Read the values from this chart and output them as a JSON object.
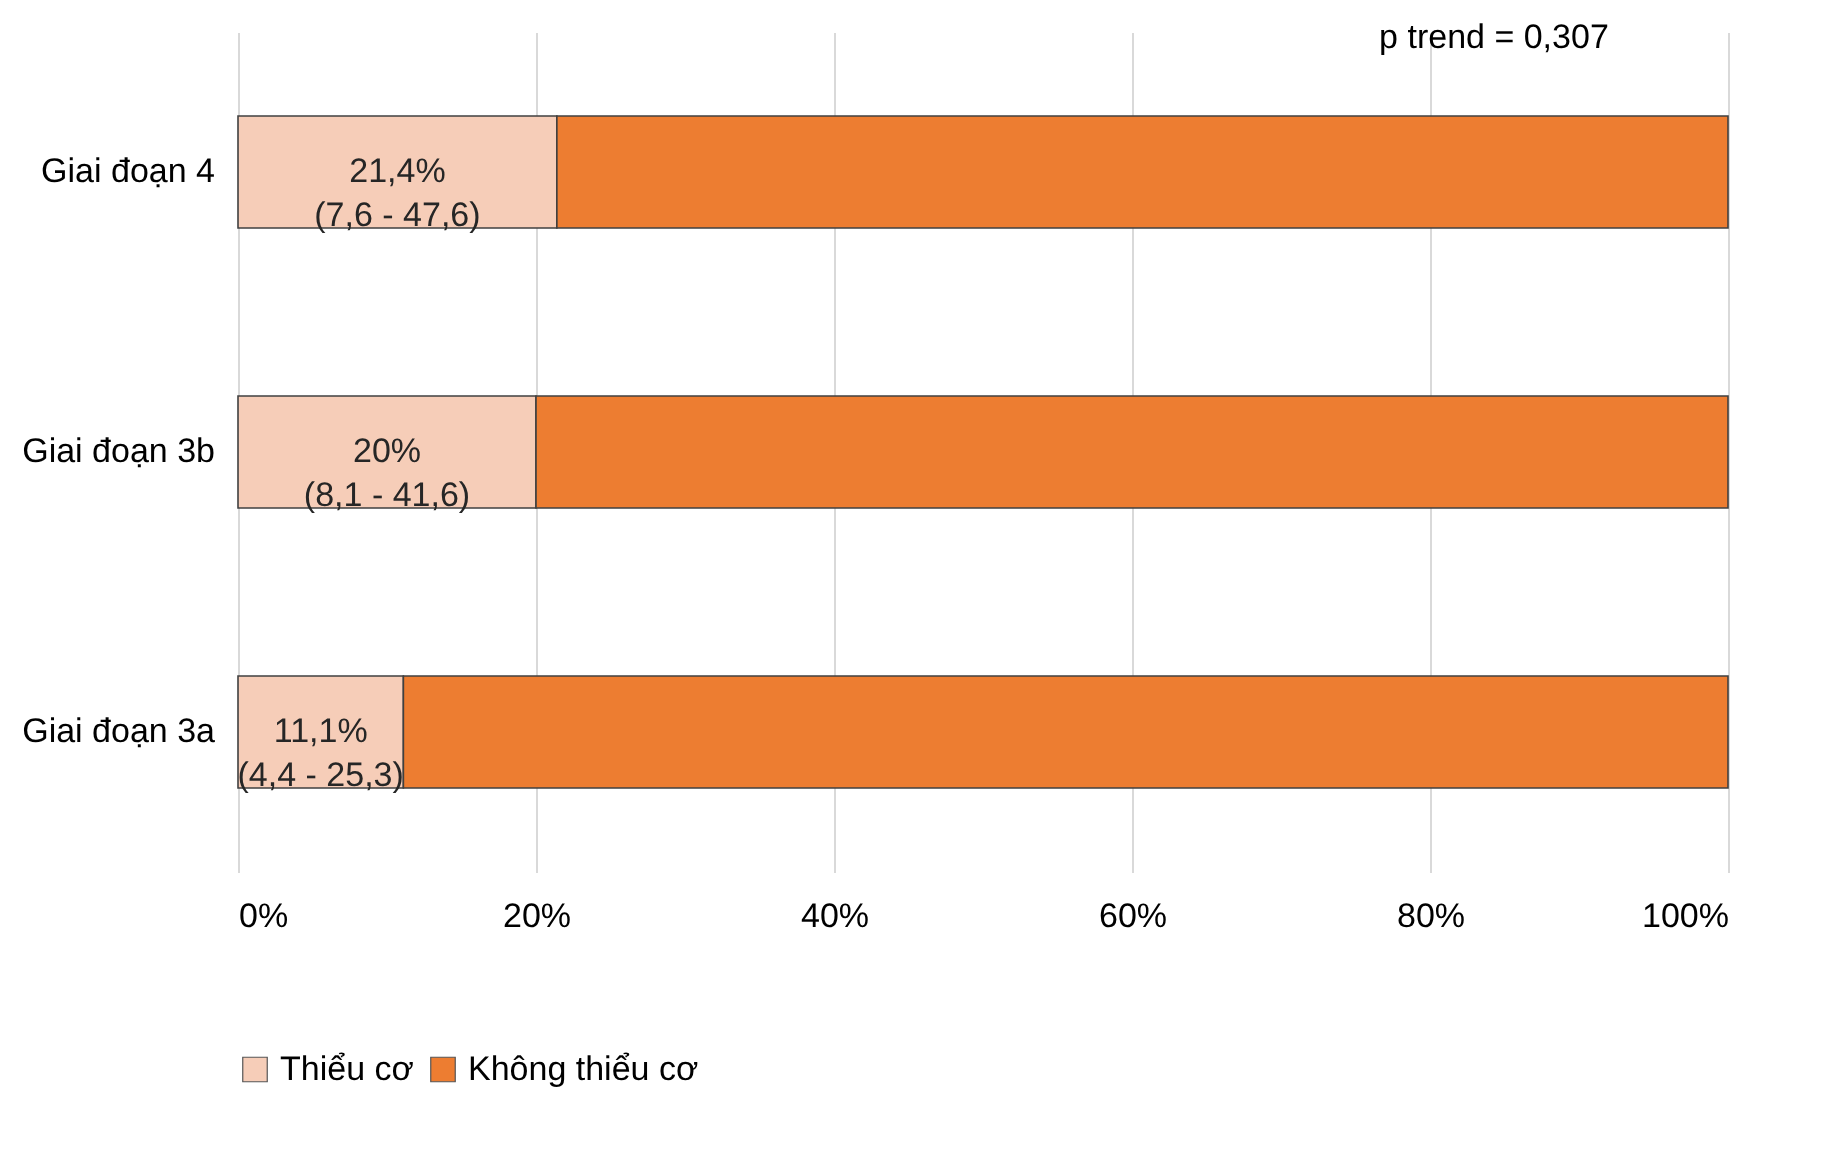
{
  "chart_data": {
    "type": "bar",
    "orientation": "horizontal",
    "stacked": true,
    "categories": [
      "Giai đoạn 4",
      "Giai đoạn 3b",
      "Giai đoạn 3a"
    ],
    "series": [
      {
        "name": "Thiểu cơ",
        "color": "#f6cdb8",
        "values": [
          21.4,
          20,
          11.1
        ],
        "value_labels": [
          "21,4%\n(7,6 - 47,6)",
          "20%\n(8,1 - 41,6)",
          "11,1%\n(4,4 - 25,3)"
        ]
      },
      {
        "name": "Không thiểu cơ",
        "color": "#ed7d31",
        "values": [
          78.6,
          80,
          88.9
        ]
      }
    ],
    "xlim": [
      0,
      100
    ],
    "xticks": [
      {
        "value": 0,
        "label": "0%"
      },
      {
        "value": 20,
        "label": "20%"
      },
      {
        "value": 40,
        "label": "40%"
      },
      {
        "value": 60,
        "label": "60%"
      },
      {
        "value": 80,
        "label": "80%"
      },
      {
        "value": 100,
        "label": "100%"
      }
    ],
    "grid": "x",
    "legend": "bottom",
    "annotations": [
      "p trend = 0,307"
    ]
  }
}
